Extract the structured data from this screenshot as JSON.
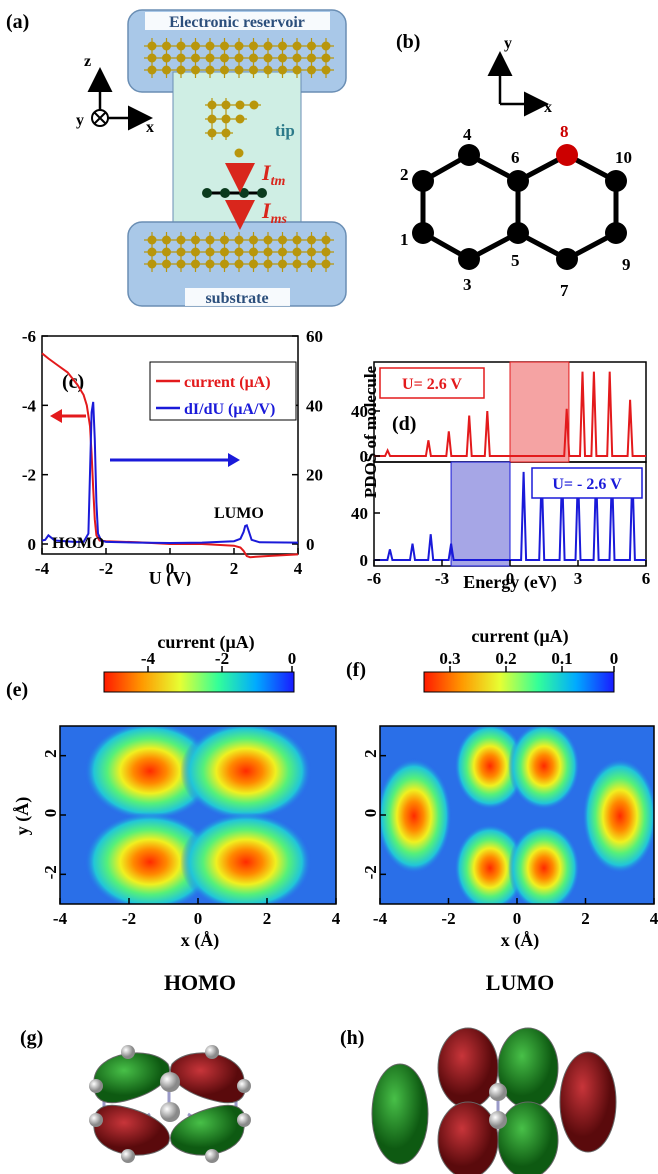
{
  "panel_labels": [
    "(a)",
    "(b)",
    "(c)",
    "(d)",
    "(e)",
    "(f)",
    "(g)",
    "(h)"
  ],
  "panel_a": {
    "reservoir": "Electronic reservoir",
    "substrate": "substrate",
    "tip": "tip",
    "axis_z": "z",
    "axis_y": "y",
    "axis_x": "x",
    "current_tm": "I",
    "current_tm_sub": "tm",
    "current_ms": "I",
    "current_ms_sub": "ms",
    "colors": {
      "box": "#a9c8e8",
      "tip_bg": "#cfeee4",
      "atom": "#b8960c",
      "arrow": "#d9261c"
    }
  },
  "panel_b": {
    "axis_y": "y",
    "axis_x": "x",
    "site_labels": [
      "1",
      "2",
      "3",
      "4",
      "5",
      "6",
      "7",
      "8",
      "9",
      "10"
    ],
    "highlight_site": "8",
    "colors": {
      "atom": "#000000",
      "highlight": "#cc0000"
    }
  },
  "chart_data": [
    {
      "id": "c",
      "type": "line",
      "xlabel": "U (V)",
      "x_ticks": [
        "-4",
        "-2",
        "0",
        "2",
        "4"
      ],
      "y_left_ticks": [
        "-6",
        "-4",
        "-2",
        "0"
      ],
      "y_right_ticks": [
        "60",
        "40",
        "20",
        "0"
      ],
      "xlim": [
        -4,
        4
      ],
      "ylim_left": [
        -6,
        0
      ],
      "ylim_right": [
        0,
        60
      ],
      "series": [
        {
          "name": "current",
          "unit": "(μA)",
          "color": "#e31a1c",
          "axis": "left",
          "x": [
            -4,
            -3.8,
            -3.5,
            -3.2,
            -2.9,
            -2.7,
            -2.6,
            -2.5,
            -2.45,
            -2.4,
            -2.35,
            -2.3,
            -2.2,
            -2,
            -1,
            0,
            1,
            2,
            2.2,
            2.3,
            2.4,
            2.5,
            3,
            4
          ],
          "y": [
            -5.5,
            -5.35,
            -5.15,
            -4.95,
            -4.6,
            -4.3,
            -4.0,
            -3.4,
            -2.6,
            -1.6,
            -0.7,
            -0.25,
            -0.1,
            -0.08,
            -0.05,
            0,
            0,
            0.05,
            0.1,
            0.2,
            0.35,
            0.38,
            0.35,
            0.3
          ]
        },
        {
          "name": "dI/dU",
          "unit": "(μA/V)",
          "color": "#1a1ad9",
          "axis": "right",
          "x": [
            -4,
            -3.9,
            -3.8,
            -3.6,
            -3.0,
            -2.7,
            -2.55,
            -2.45,
            -2.4,
            -2.35,
            -2.3,
            -2.25,
            -2.15,
            -2.0,
            -1,
            0,
            1,
            2,
            2.2,
            2.3,
            2.35,
            2.4,
            2.45,
            2.55,
            2.8,
            4
          ],
          "y": [
            1,
            1.2,
            2.5,
            1.0,
            0.6,
            0.6,
            3,
            38,
            41,
            30,
            12,
            3,
            1,
            0.6,
            0.4,
            0.3,
            0.4,
            0.8,
            1.5,
            3.5,
            5.2,
            5.4,
            4.0,
            1.2,
            0.5,
            0.4
          ]
        }
      ],
      "annotations": [
        "HOMO",
        "LUMO"
      ]
    },
    {
      "id": "d",
      "type": "line",
      "ylabel": "PDOS of molecule",
      "xlabel": "Energy (eV)",
      "x_ticks": [
        "-6",
        "-3",
        "0",
        "3",
        "6"
      ],
      "y_ticks_top": [
        "40",
        "0"
      ],
      "y_ticks_bottom": [
        "40",
        "0"
      ],
      "xlim": [
        -6,
        6
      ],
      "subplots": [
        {
          "label": "U= 2.6 V",
          "color": "#e31a1c",
          "window": [
            0,
            2.6
          ],
          "window_color": "#f5a3a3",
          "peaks_x": [
            -5.4,
            -3.6,
            -2.7,
            -1.8,
            -1.0,
            2.5,
            3.2,
            3.7,
            4.4,
            5.3
          ],
          "peaks_y": [
            5,
            14,
            22,
            36,
            40,
            42,
            75,
            75,
            75,
            50
          ]
        },
        {
          "label": "U= - 2.6 V",
          "color": "#1a1ad9",
          "window": [
            -2.6,
            0
          ],
          "window_color": "#a6a6e6",
          "peaks_x": [
            -5.3,
            -4.3,
            -3.5,
            -2.6,
            0.6,
            1.4,
            2.3,
            3.0,
            3.8,
            4.5,
            5.4
          ],
          "peaks_y": [
            9,
            14,
            22,
            14,
            75,
            75,
            75,
            75,
            75,
            75,
            75
          ]
        }
      ]
    },
    {
      "id": "e",
      "type": "heatmap",
      "title": "current (μA)",
      "cbar_ticks": [
        "-4",
        "-2",
        "0"
      ],
      "xlabel": "x (Å)",
      "ylabel": "y (Å)",
      "x_ticks": [
        "-4",
        "-2",
        "0",
        "2",
        "4"
      ],
      "y_ticks": [
        "2",
        "0",
        "-2"
      ],
      "caption": "HOMO"
    },
    {
      "id": "f",
      "type": "heatmap",
      "title": "current (μA)",
      "cbar_ticks": [
        "0.3",
        "0.2",
        "0.1",
        "0"
      ],
      "xlabel": "x (Å)",
      "y_ticks": [
        "2",
        "0",
        "-2"
      ],
      "x_ticks": [
        "-4",
        "-2",
        "0",
        "2",
        "4"
      ],
      "caption": "LUMO"
    }
  ]
}
